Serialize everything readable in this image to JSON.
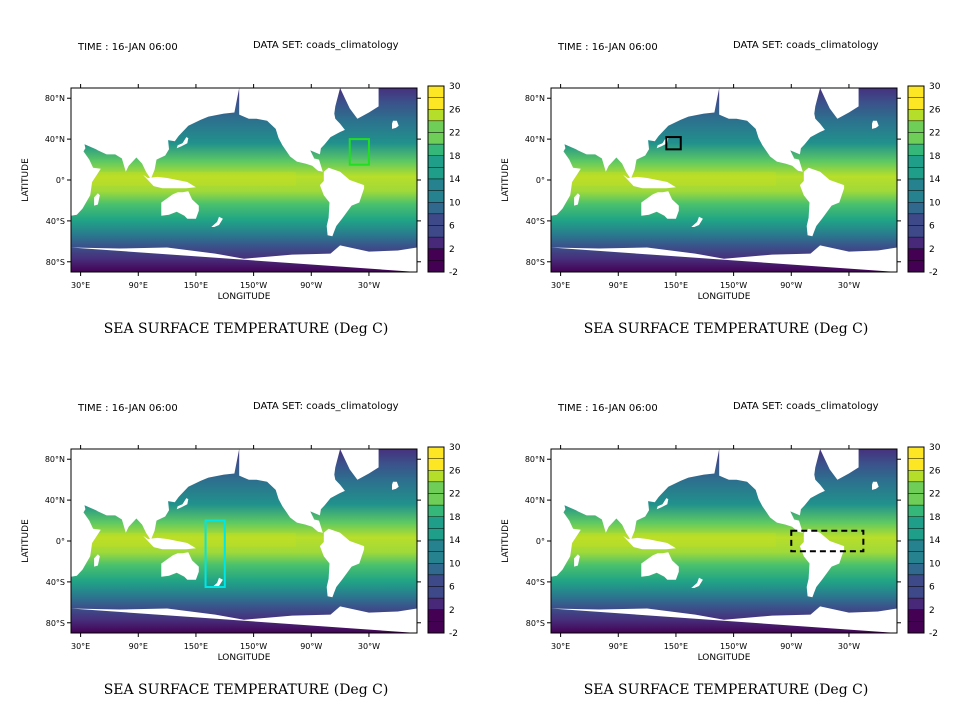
{
  "colormap": [
    "#440154",
    "#482878",
    "#3e4989",
    "#31688e",
    "#26828e",
    "#1f9e89",
    "#35b779",
    "#6ece58",
    "#b5de2b",
    "#fde725"
  ],
  "chart_data": [
    {
      "type": "heatmap",
      "header_time": "TIME : 16-JAN 06:00",
      "header_dataset": "DATA SET: coads_climatology",
      "title": "SEA SURFACE TEMPERATURE (Deg C)",
      "xlabel": "LONGITUDE",
      "ylabel": "LATITUDE",
      "x_ticks": [
        "30°E",
        "90°E",
        "150°E",
        "150°W",
        "90°W",
        "30°W"
      ],
      "y_ticks": [
        "80°N",
        "40°N",
        "0°",
        "40°S",
        "80°S"
      ],
      "colorbar_ticks": [
        "30",
        "26",
        "22",
        "18",
        "14",
        "10",
        "6",
        "2",
        "-2"
      ],
      "colorbar_range": [
        -2,
        30
      ],
      "region_box": {
        "color": "#22dd22",
        "dashed": false,
        "lon": [
          310,
          330
        ],
        "lat": [
          15,
          40
        ]
      }
    },
    {
      "type": "heatmap",
      "header_time": "TIME : 16-JAN 06:00",
      "header_dataset": "DATA SET: coads_climatology",
      "title": "SEA SURFACE TEMPERATURE (Deg C)",
      "xlabel": "LONGITUDE",
      "ylabel": "LATITUDE",
      "x_ticks": [
        "30°E",
        "90°E",
        "150°E",
        "150°W",
        "90°W",
        "30°W"
      ],
      "y_ticks": [
        "80°N",
        "40°N",
        "0°",
        "40°S",
        "80°S"
      ],
      "colorbar_ticks": [
        "30",
        "26",
        "22",
        "18",
        "14",
        "10",
        "6",
        "2",
        "-2"
      ],
      "colorbar_range": [
        -2,
        30
      ],
      "region_box": {
        "color": "#000000",
        "dashed": false,
        "lon": [
          140,
          155
        ],
        "lat": [
          30,
          42
        ]
      }
    },
    {
      "type": "heatmap",
      "header_time": "TIME : 16-JAN 06:00",
      "header_dataset": "DATA SET: coads_climatology",
      "title": "SEA SURFACE TEMPERATURE (Deg C)",
      "xlabel": "LONGITUDE",
      "ylabel": "LATITUDE",
      "x_ticks": [
        "30°E",
        "90°E",
        "150°E",
        "150°W",
        "90°W",
        "30°W"
      ],
      "y_ticks": [
        "80°N",
        "40°N",
        "0°",
        "40°S",
        "80°S"
      ],
      "colorbar_ticks": [
        "30",
        "26",
        "22",
        "18",
        "14",
        "10",
        "6",
        "2",
        "-2"
      ],
      "colorbar_range": [
        -2,
        30
      ],
      "region_box": {
        "color": "#00e5e5",
        "dashed": false,
        "lon": [
          160,
          180
        ],
        "lat": [
          -45,
          20
        ]
      }
    },
    {
      "type": "heatmap",
      "header_time": "TIME : 16-JAN 06:00",
      "header_dataset": "DATA SET: coads_climatology",
      "title": "SEA SURFACE TEMPERATURE (Deg C)",
      "xlabel": "LONGITUDE",
      "ylabel": "LATITUDE",
      "x_ticks": [
        "30°E",
        "90°E",
        "150°E",
        "150°W",
        "90°W",
        "30°W"
      ],
      "y_ticks": [
        "80°N",
        "40°N",
        "0°",
        "40°S",
        "80°S"
      ],
      "colorbar_ticks": [
        "30",
        "26",
        "22",
        "18",
        "14",
        "10",
        "6",
        "2",
        "-2"
      ],
      "colorbar_range": [
        -2,
        30
      ],
      "region_box": {
        "color": "#000000",
        "dashed": true,
        "lon": [
          270,
          345
        ],
        "lat": [
          -10,
          10
        ]
      }
    }
  ]
}
